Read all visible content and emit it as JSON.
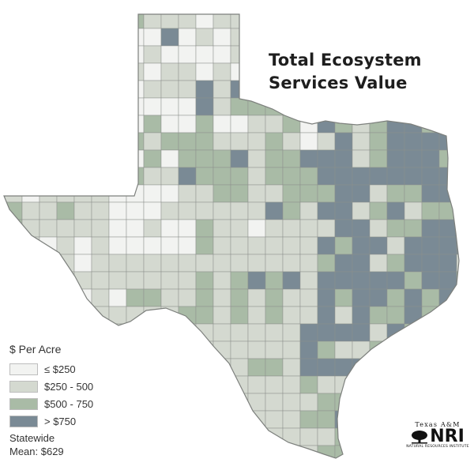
{
  "map": {
    "title_line1": "Total Ecosystem",
    "title_line2": "Services Value",
    "region": "Texas counties"
  },
  "legend": {
    "title": "$ Per Acre",
    "items": [
      {
        "label": "≤ $250",
        "color": "#f2f3f1"
      },
      {
        "label": "$250 - 500",
        "color": "#d4d9d0"
      },
      {
        "label": "$500 - 750",
        "color": "#a9bba6"
      },
      {
        "label": "> $750",
        "color": "#7a8a95"
      }
    ]
  },
  "summary": {
    "line1": "Statewide",
    "line2": "Mean: $629"
  },
  "logo": {
    "top": "Texas A&M",
    "main": "NRI",
    "bottom": "NATURAL RESOURCES INSTITUTE"
  },
  "colors": {
    "border": "#8c8f8c",
    "title": "#1e1e1e"
  }
}
